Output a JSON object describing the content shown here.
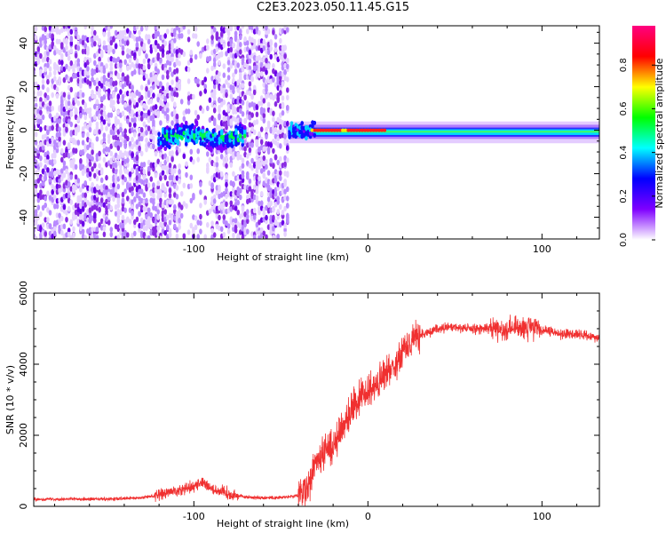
{
  "title": "C2E3.2023.050.11.45.G15",
  "chart_data": [
    {
      "type": "heatmap",
      "xlabel": "Height of straight line (km)",
      "ylabel": "Frequency (Hz)",
      "xlim": [
        -192,
        133
      ],
      "ylim": [
        -50,
        48
      ],
      "xticks": [
        -100,
        0,
        100
      ],
      "yticks": [
        -40,
        -20,
        0,
        20,
        40
      ],
      "colorbar": {
        "label": "Normalized spectral amplitude",
        "range": [
          0,
          0.98
        ],
        "ticks": [
          "0.0",
          "0.2",
          "0.4",
          "0.6",
          "0.8"
        ],
        "colors": [
          "#ffffff",
          "#7f00ff",
          "#0000ff",
          "#00ffff",
          "#00ff00",
          "#ffff00",
          "#ff0000",
          "#ff0080"
        ]
      },
      "regions": [
        {
          "x": [
            -192,
            -45
          ],
          "description": "broadband noise",
          "amplitude": 0.05
        },
        {
          "x": [
            -120,
            -70
          ],
          "y_center": -3,
          "spread": 6,
          "amplitude": 0.3
        },
        {
          "x": [
            -45,
            133
          ],
          "y_center": -1,
          "spread": 3,
          "amplitude": 0.5
        },
        {
          "x": [
            -32,
            10
          ],
          "y_center": 0,
          "spread": 1,
          "amplitude": 0.95
        }
      ]
    },
    {
      "type": "line",
      "xlabel": "Height of straight line (km)",
      "ylabel": "SNR (10 * v/v)",
      "xlim": [
        -192,
        133
      ],
      "ylim": [
        0,
        6000
      ],
      "xticks": [
        -100,
        0,
        100
      ],
      "yticks": [
        0,
        2000,
        4000,
        6000
      ],
      "color": "#f03030",
      "series": [
        {
          "x": [
            -192,
            -170,
            -150,
            -130,
            -120,
            -110,
            -100,
            -95,
            -90,
            -80,
            -70,
            -60,
            -50,
            -40,
            -35,
            -30,
            -25,
            -20,
            -15,
            -10,
            -5,
            0,
            5,
            10,
            15,
            20,
            25,
            30,
            40,
            50,
            60,
            70,
            80,
            90,
            100,
            110,
            120,
            133
          ],
          "values": [
            200,
            210,
            200,
            240,
            320,
            450,
            560,
            700,
            500,
            350,
            260,
            240,
            250,
            300,
            500,
            1200,
            1500,
            1700,
            2200,
            2700,
            3000,
            3200,
            3400,
            3700,
            4000,
            4400,
            4700,
            4800,
            5000,
            5050,
            5000,
            5000,
            5000,
            5050,
            4950,
            4850,
            4850,
            4750
          ]
        }
      ]
    }
  ]
}
